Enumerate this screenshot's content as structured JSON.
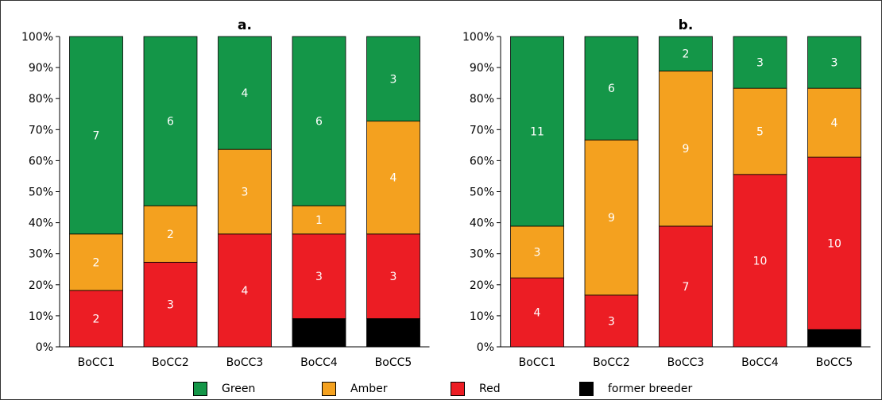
{
  "colors": {
    "Green": "#149648",
    "Amber": "#f4a11f",
    "Red": "#ec1d24",
    "former breeder": "#000000"
  },
  "legend": {
    "items": [
      "Green",
      "Amber",
      "Red",
      "former breeder"
    ]
  },
  "chart_data": [
    {
      "type": "bar",
      "stacked": true,
      "normalized": true,
      "title": "a.",
      "categories": [
        "BoCC1",
        "BoCC2",
        "BoCC3",
        "BoCC4",
        "BoCC5"
      ],
      "series": [
        {
          "name": "former breeder",
          "values": [
            0,
            0,
            0,
            1,
            1
          ],
          "labels": [
            "",
            "",
            "",
            "",
            ""
          ]
        },
        {
          "name": "Red",
          "values": [
            2,
            3,
            4,
            3,
            3
          ],
          "labels": [
            "2",
            "3",
            "4",
            "3",
            "3"
          ]
        },
        {
          "name": "Amber",
          "values": [
            2,
            2,
            3,
            1,
            4
          ],
          "labels": [
            "2",
            "2",
            "3",
            "1",
            "4"
          ]
        },
        {
          "name": "Green",
          "values": [
            7,
            6,
            4,
            6,
            3
          ],
          "labels": [
            "7",
            "6",
            "4",
            "6",
            "3"
          ]
        }
      ],
      "ylim": [
        0,
        100
      ],
      "yticks": [
        "0%",
        "10%",
        "20%",
        "30%",
        "40%",
        "50%",
        "60%",
        "70%",
        "80%",
        "90%",
        "100%"
      ]
    },
    {
      "type": "bar",
      "stacked": true,
      "normalized": true,
      "title": "b.",
      "categories": [
        "BoCC1",
        "BoCC2",
        "BoCC3",
        "BoCC4",
        "BoCC5"
      ],
      "series": [
        {
          "name": "former breeder",
          "values": [
            0,
            0,
            0,
            0,
            1
          ],
          "labels": [
            "",
            "",
            "",
            "",
            ""
          ]
        },
        {
          "name": "Red",
          "values": [
            4,
            3,
            7,
            10,
            10
          ],
          "labels": [
            "4",
            "3",
            "7",
            "10",
            "10"
          ]
        },
        {
          "name": "Amber",
          "values": [
            3,
            9,
            9,
            5,
            4
          ],
          "labels": [
            "3",
            "9",
            "9",
            "5",
            "4"
          ]
        },
        {
          "name": "Green",
          "values": [
            11,
            6,
            2,
            3,
            3
          ],
          "labels": [
            "11",
            "6",
            "2",
            "3",
            "3"
          ]
        }
      ],
      "ylim": [
        0,
        100
      ],
      "yticks": [
        "0%",
        "10%",
        "20%",
        "30%",
        "40%",
        "50%",
        "60%",
        "70%",
        "80%",
        "90%",
        "100%"
      ]
    }
  ]
}
